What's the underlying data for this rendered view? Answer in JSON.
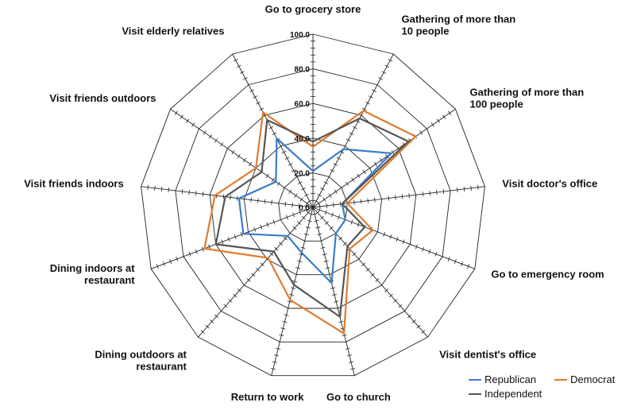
{
  "chart_data": {
    "type": "radar",
    "axes": [
      "Go to grocery store",
      "Gathering of more than 10 people",
      "Gathering of more than 100 people",
      "Visit doctor's office",
      "Go to emergency room",
      "Visit dentist's office",
      "Go to church",
      "Return to work",
      "Dining outdoors at restaurant",
      "Dining indoors at restaurant",
      "Visit friends indoors",
      "Visit friends outdoors",
      "Visit elderly relatives"
    ],
    "axis_label_lines": [
      [
        "Go to grocery store"
      ],
      [
        "Gathering of more than",
        "10 people"
      ],
      [
        "Gathering of more than",
        "100 people"
      ],
      [
        "Visit doctor's office"
      ],
      [
        "Go to emergency room"
      ],
      [
        "Visit dentist's office"
      ],
      [
        "Go to church"
      ],
      [
        "Return to work"
      ],
      [
        "Dining outdoors at",
        "restaurant"
      ],
      [
        "Dining indoors at",
        "restaurant"
      ],
      [
        "Visit friends indoors"
      ],
      [
        "Visit friends outdoors"
      ],
      [
        "Visit elderly relatives"
      ]
    ],
    "r_ticks": [
      "0.0",
      "20.0",
      "40.0",
      "60.0",
      "80.0",
      "100.0"
    ],
    "r_range": [
      0,
      100
    ],
    "series": [
      {
        "name": "Republican",
        "color": "#3a7dc9",
        "values": [
          21,
          38,
          55,
          17,
          20,
          20,
          45,
          27,
          22,
          43,
          43,
          26,
          45
        ]
      },
      {
        "name": "Democrat",
        "color": "#e07b2e",
        "values": [
          35,
          63,
          72,
          20,
          37,
          32,
          75,
          55,
          39,
          67,
          57,
          40,
          62
        ]
      },
      {
        "name": "Independent",
        "color": "#555555",
        "values": [
          38,
          58,
          67,
          17,
          32,
          30,
          65,
          46,
          34,
          60,
          51,
          36,
          57
        ]
      }
    ],
    "legend": {
      "position": "bottom-right"
    }
  }
}
